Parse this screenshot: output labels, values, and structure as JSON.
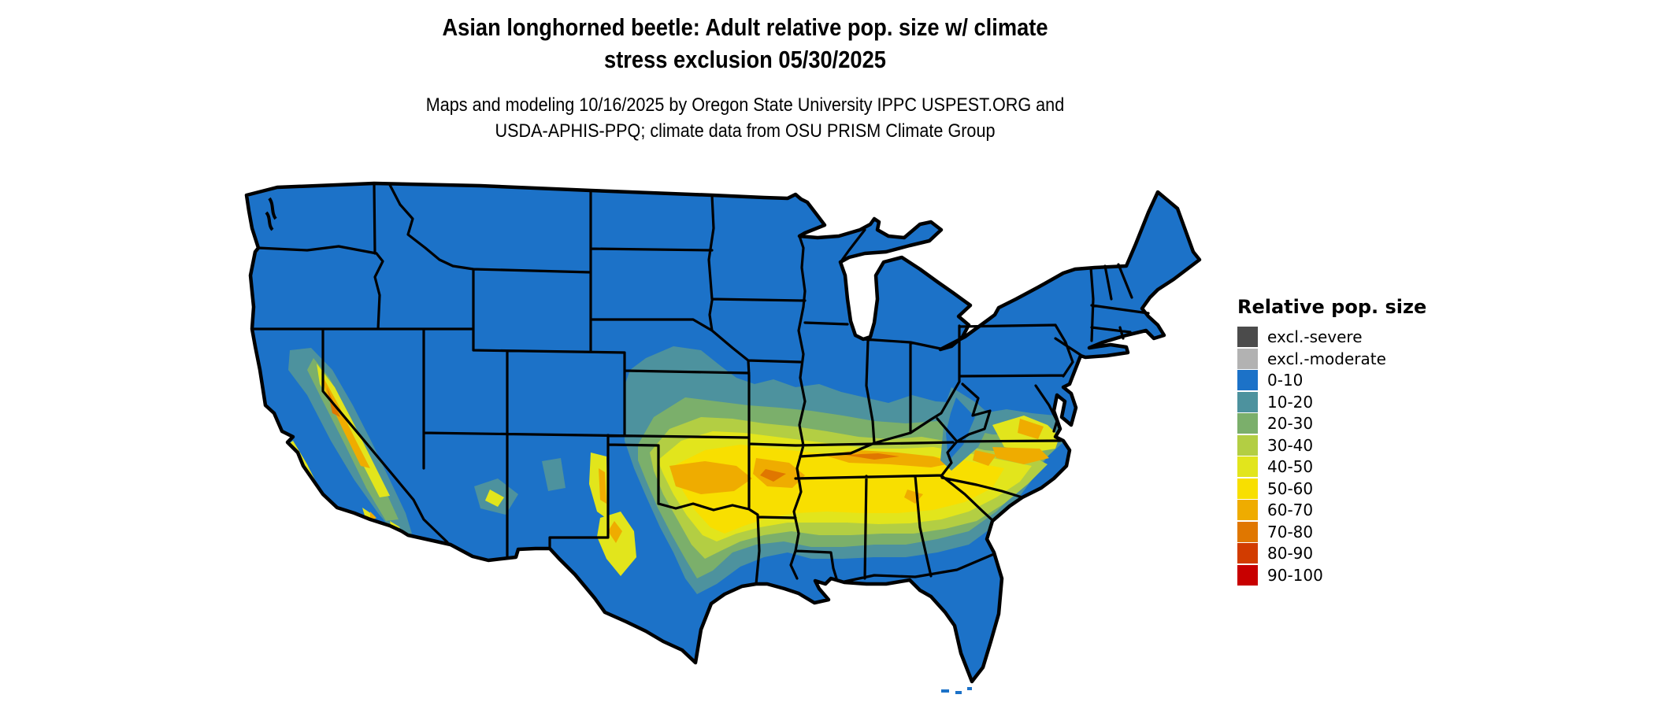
{
  "title": {
    "line1": "Asian longhorned beetle: Adult relative pop. size w/ climate",
    "line2": "stress exclusion 05/30/2025"
  },
  "subtitle": {
    "line1": "Maps and modeling 10/16/2025 by Oregon State University IPPC USPEST.ORG and",
    "line2": "USDA-APHIS-PPQ; climate data from OSU PRISM Climate Group"
  },
  "legend": {
    "title": "Relative pop. size",
    "items": [
      {
        "label": "excl.-severe",
        "color": "#4B4B4B"
      },
      {
        "label": "excl.-moderate",
        "color": "#B2B2B2"
      },
      {
        "label": "0-10",
        "color": "#1C72C8"
      },
      {
        "label": "10-20",
        "color": "#4D929E"
      },
      {
        "label": "20-30",
        "color": "#7BAF6B"
      },
      {
        "label": "30-40",
        "color": "#B3CE43"
      },
      {
        "label": "40-50",
        "color": "#E2E51C"
      },
      {
        "label": "50-60",
        "color": "#F8DF00"
      },
      {
        "label": "60-70",
        "color": "#EFAC00"
      },
      {
        "label": "70-80",
        "color": "#E07700"
      },
      {
        "label": "80-90",
        "color": "#D23C00"
      },
      {
        "label": "90-100",
        "color": "#C80000"
      }
    ]
  },
  "colors": {
    "excl_severe": "#4B4B4B",
    "excl_moderate": "#B2B2B2",
    "v0_10": "#1C72C8",
    "v10_20": "#4D929E",
    "v20_30": "#7BAF6B",
    "v30_40": "#B3CE43",
    "v40_50": "#E2E51C",
    "v50_60": "#F8DF00",
    "v60_70": "#EFAC00",
    "v70_80": "#E07700",
    "v80_90": "#D23C00",
    "v90_100": "#C80000",
    "map_border": "#000000",
    "background": "#FFFFFF"
  }
}
